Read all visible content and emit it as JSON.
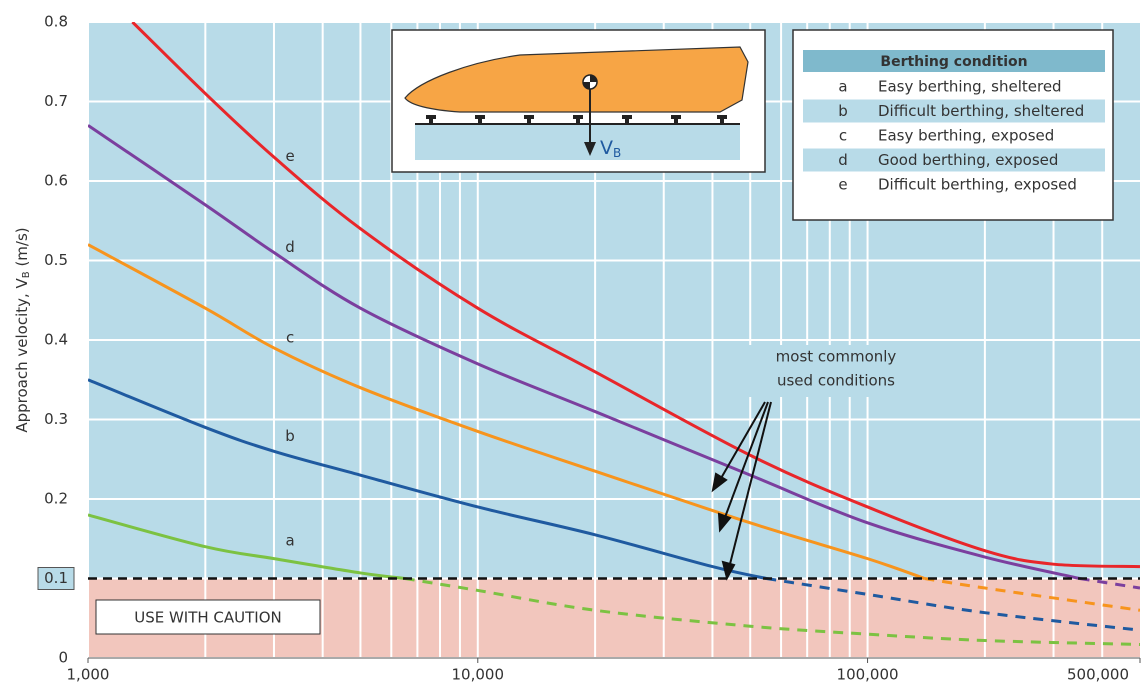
{
  "chart_data": {
    "type": "line",
    "y_label": [
      "Approach velocity, V",
      "B",
      " (m/s)"
    ],
    "log_x": true,
    "xlim": [
      1000,
      500000
    ],
    "xticks": [
      {
        "value": 1000,
        "label": "1,000"
      },
      {
        "value": 10000,
        "label": "10,000"
      },
      {
        "value": 100000,
        "label": "100,000"
      },
      {
        "value": 500000,
        "label": "500,000"
      }
    ],
    "x_grid": [
      1000,
      2000,
      3000,
      4000,
      5000,
      6000,
      7000,
      8000,
      9000,
      10000,
      20000,
      30000,
      40000,
      50000,
      60000,
      70000,
      80000,
      90000,
      100000,
      200000,
      300000,
      400000
    ],
    "ylim": [
      0,
      0.8
    ],
    "yticks": [
      0,
      0.1,
      0.2,
      0.3,
      0.4,
      0.5,
      0.6,
      0.7,
      0.8
    ],
    "grid": true,
    "caution_threshold": 0.1,
    "caution_label": "USE WITH CAUTION",
    "legend_title": "Berthing condition",
    "inset_label": [
      "V",
      "B"
    ],
    "annotation": [
      "most commonly",
      "used conditions"
    ],
    "series": [
      {
        "name": "a",
        "description": "Easy berthing, sheltered",
        "color": "#7cc242",
        "x": [
          1000,
          2000,
          3000,
          5000,
          6500,
          10000,
          20000,
          50000,
          100000,
          200000,
          500000
        ],
        "values": [
          0.18,
          0.14,
          0.125,
          0.107,
          0.1,
          0.085,
          0.06,
          0.04,
          0.03,
          0.022,
          0.017
        ]
      },
      {
        "name": "b",
        "description": "Difficult berthing, sheltered",
        "color": "#1f5aa0",
        "x": [
          1000,
          2000,
          3000,
          5000,
          10000,
          20000,
          40000,
          55000,
          100000,
          200000,
          500000
        ],
        "values": [
          0.35,
          0.29,
          0.26,
          0.23,
          0.19,
          0.155,
          0.115,
          0.1,
          0.08,
          0.057,
          0.035
        ]
      },
      {
        "name": "c",
        "description": "Easy berthing, exposed",
        "color": "#f7941d",
        "x": [
          1000,
          2000,
          3000,
          5000,
          10000,
          20000,
          50000,
          100000,
          140000,
          200000,
          500000
        ],
        "values": [
          0.52,
          0.44,
          0.39,
          0.34,
          0.285,
          0.235,
          0.17,
          0.125,
          0.1,
          0.088,
          0.06
        ]
      },
      {
        "name": "d",
        "description": "Good berthing, exposed",
        "color": "#7b3f9e",
        "x": [
          1000,
          2000,
          3000,
          5000,
          10000,
          20000,
          50000,
          100000,
          200000,
          350000,
          500000
        ],
        "values": [
          0.67,
          0.57,
          0.51,
          0.44,
          0.37,
          0.31,
          0.23,
          0.17,
          0.127,
          0.1,
          0.088
        ]
      },
      {
        "name": "e",
        "description": "Difficult berthing, exposed",
        "color": "#e8262a",
        "x": [
          1300,
          2000,
          3000,
          5000,
          10000,
          20000,
          50000,
          100000,
          200000,
          300000,
          500000
        ],
        "values": [
          0.8,
          0.71,
          0.63,
          0.54,
          0.44,
          0.36,
          0.255,
          0.19,
          0.135,
          0.118,
          0.115
        ]
      }
    ]
  }
}
